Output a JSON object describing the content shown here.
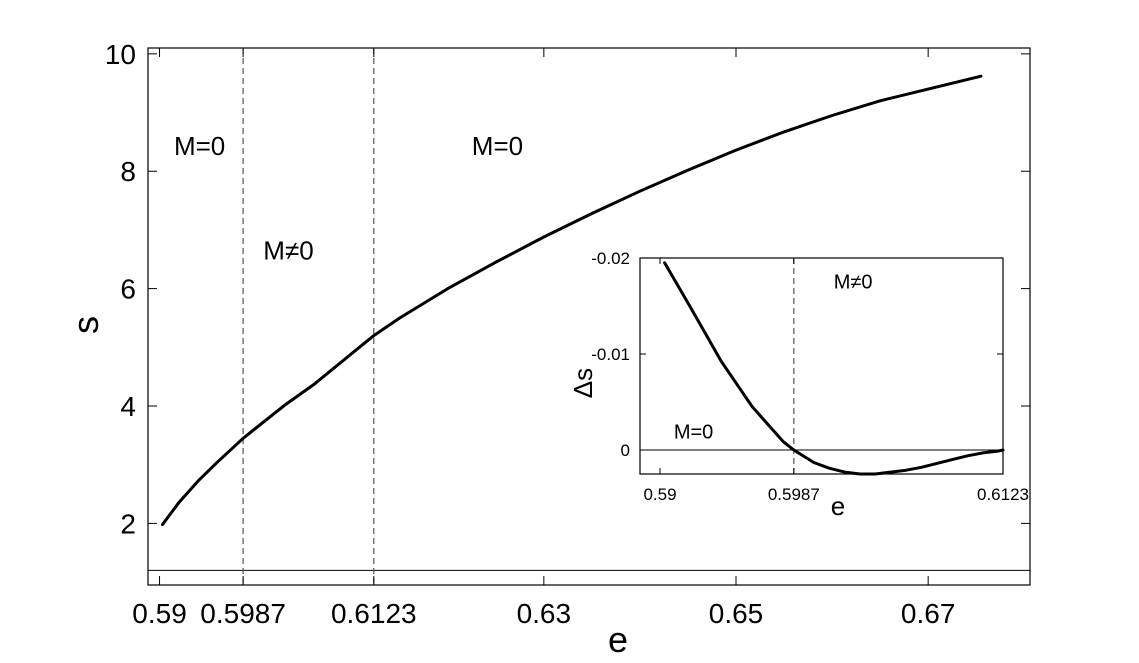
{
  "chart_data": [
    {
      "type": "line",
      "xlabel": "e",
      "ylabel": "s",
      "xlim": [
        0.5888,
        0.6806
      ],
      "ylim": [
        0.95,
        10.1
      ],
      "x_ticks": [
        0.59,
        0.5987,
        0.6123,
        0.63,
        0.65,
        0.67
      ],
      "x_tick_labels": [
        "0.59",
        "0.5987",
        "0.6123",
        "0.63",
        "0.65",
        "0.67"
      ],
      "y_ticks": [
        2,
        4,
        6,
        8,
        10
      ],
      "y_tick_labels": [
        "2",
        "4",
        "6",
        "8",
        "10"
      ],
      "baseline": 1.2,
      "vlines": [
        0.5987,
        0.6123
      ],
      "annotations": [
        {
          "text": "M=0",
          "x": 0.5915,
          "y": 8.28
        },
        {
          "text": "M≠0",
          "x": 0.6008,
          "y": 6.5
        },
        {
          "text": "M=0",
          "x": 0.6225,
          "y": 8.28
        }
      ],
      "series": [
        {
          "x": [
            0.5903,
            0.592,
            0.594,
            0.596,
            0.5987,
            0.6,
            0.603,
            0.606,
            0.6123,
            0.615,
            0.62,
            0.625,
            0.63,
            0.635,
            0.64,
            0.645,
            0.65,
            0.655,
            0.66,
            0.665,
            0.67,
            0.6755
          ],
          "y": [
            1.98,
            2.35,
            2.72,
            3.04,
            3.45,
            3.62,
            4.01,
            4.36,
            5.2,
            5.5,
            6.0,
            6.45,
            6.88,
            7.28,
            7.66,
            8.02,
            8.36,
            8.67,
            8.95,
            9.2,
            9.4,
            9.62
          ]
        }
      ]
    },
    {
      "type": "line",
      "xlabel": "e",
      "ylabel": "Δs",
      "xlim": [
        0.5887,
        0.6123
      ],
      "ylim": [
        0.0025,
        -0.02
      ],
      "y_reversed": true,
      "x_ticks": [
        0.59,
        0.5987,
        0.6123
      ],
      "x_tick_labels": [
        "0.59",
        "0.5987",
        "0.6123"
      ],
      "y_ticks": [
        -0.02,
        -0.01,
        0
      ],
      "y_tick_labels": [
        "-0.02",
        "-0.01",
        "0"
      ],
      "zero_line": true,
      "vlines": [
        0.5987
      ],
      "annotations": [
        {
          "text": "M=0",
          "x": 0.5909,
          "y": -0.0012
        },
        {
          "text": "M≠0",
          "x": 0.6013,
          "y": -0.0168
        }
      ],
      "series": [
        {
          "x": [
            0.5903,
            0.592,
            0.594,
            0.596,
            0.598,
            0.5987,
            0.6,
            0.601,
            0.602,
            0.603,
            0.604,
            0.605,
            0.606,
            0.607,
            0.608,
            0.609,
            0.61,
            0.611,
            0.612,
            0.6123
          ],
          "y": [
            -0.0195,
            -0.0148,
            -0.0092,
            -0.0045,
            -0.0009,
            0.0,
            0.0013,
            0.0019,
            0.0023,
            0.0025,
            0.0025,
            0.0023,
            0.0021,
            0.0018,
            0.0014,
            0.001,
            0.0006,
            0.0003,
            0.0001,
            0.0
          ]
        }
      ]
    }
  ]
}
